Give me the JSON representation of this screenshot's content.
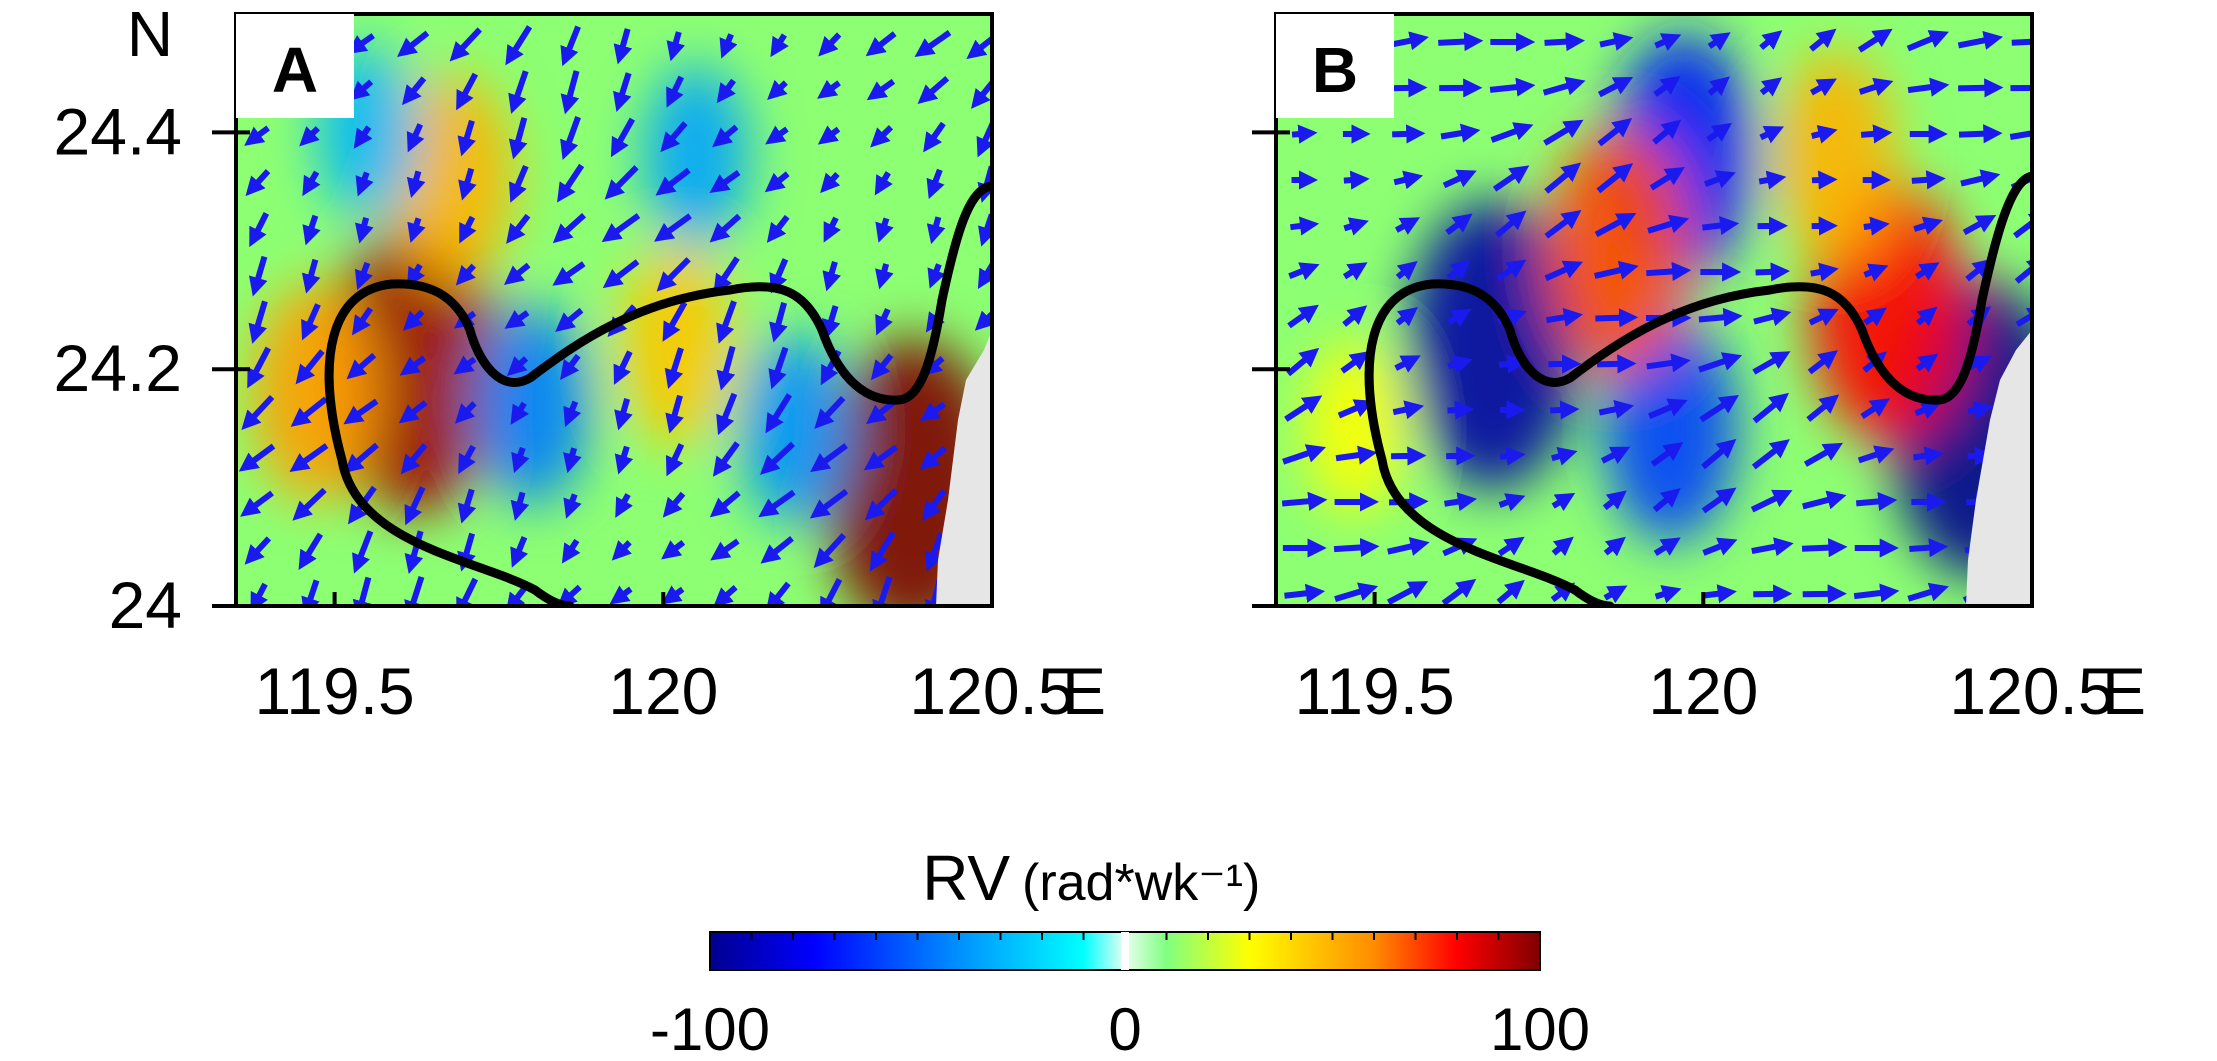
{
  "chart_data": [
    {
      "type": "heatmap",
      "panel_label": "A",
      "xlim": [
        119.35,
        120.5
      ],
      "ylim": [
        24.0,
        24.5
      ],
      "x_ticks": [
        "119.5",
        "120",
        "120.5"
      ],
      "y_ticks": [
        "24",
        "24.2",
        "24.4"
      ],
      "x_unit": "E",
      "y_unit": "N",
      "field": "relative vorticity with current vectors",
      "features": [
        {
          "kind": "positive",
          "lon": 119.62,
          "lat": 24.2,
          "value": 95
        },
        {
          "kind": "positive",
          "lon": 119.47,
          "lat": 24.18,
          "value": 55
        },
        {
          "kind": "positive",
          "lon": 119.68,
          "lat": 24.36,
          "value": 50
        },
        {
          "kind": "positive",
          "lon": 120.02,
          "lat": 24.22,
          "value": 45
        },
        {
          "kind": "positive",
          "lon": 120.38,
          "lat": 24.1,
          "value": 100
        },
        {
          "kind": "negative",
          "lon": 119.8,
          "lat": 24.17,
          "value": -45
        },
        {
          "kind": "negative",
          "lon": 120.05,
          "lat": 24.38,
          "value": -35
        },
        {
          "kind": "negative",
          "lon": 120.2,
          "lat": 24.15,
          "value": -40
        },
        {
          "kind": "negative",
          "lon": 119.55,
          "lat": 24.4,
          "value": -30
        }
      ],
      "mean_current_deg": 235
    },
    {
      "type": "heatmap",
      "panel_label": "B",
      "xlim": [
        119.35,
        120.5
      ],
      "ylim": [
        24.0,
        24.5
      ],
      "x_ticks": [
        "119.5",
        "120",
        "120.5"
      ],
      "y_ticks": [
        "24",
        "24.2",
        "24.4"
      ],
      "x_unit": "E",
      "y_unit": "",
      "field": "relative vorticity with current vectors",
      "features": [
        {
          "kind": "negative",
          "lon": 119.68,
          "lat": 24.22,
          "value": -95
        },
        {
          "kind": "negative",
          "lon": 120.42,
          "lat": 24.15,
          "value": -100
        },
        {
          "kind": "negative",
          "lon": 119.97,
          "lat": 24.38,
          "value": -70
        },
        {
          "kind": "negative",
          "lon": 119.95,
          "lat": 24.15,
          "value": -60
        },
        {
          "kind": "positive",
          "lon": 119.87,
          "lat": 24.3,
          "value": 70
        },
        {
          "kind": "positive",
          "lon": 120.28,
          "lat": 24.25,
          "value": 80
        },
        {
          "kind": "positive",
          "lon": 120.2,
          "lat": 24.38,
          "value": 50
        },
        {
          "kind": "positive",
          "lon": 119.47,
          "lat": 24.15,
          "value": 30
        }
      ],
      "mean_current_deg": 20
    }
  ],
  "colorbar": {
    "title": "RV",
    "units": "(rad*wk⁻¹)",
    "min_label": "-100",
    "mid_label": "0",
    "max_label": "100",
    "range": [
      -100,
      100
    ]
  },
  "colors": {
    "arrow": "#1a1aee",
    "front": "#000000",
    "land": "#e6e6e6"
  }
}
